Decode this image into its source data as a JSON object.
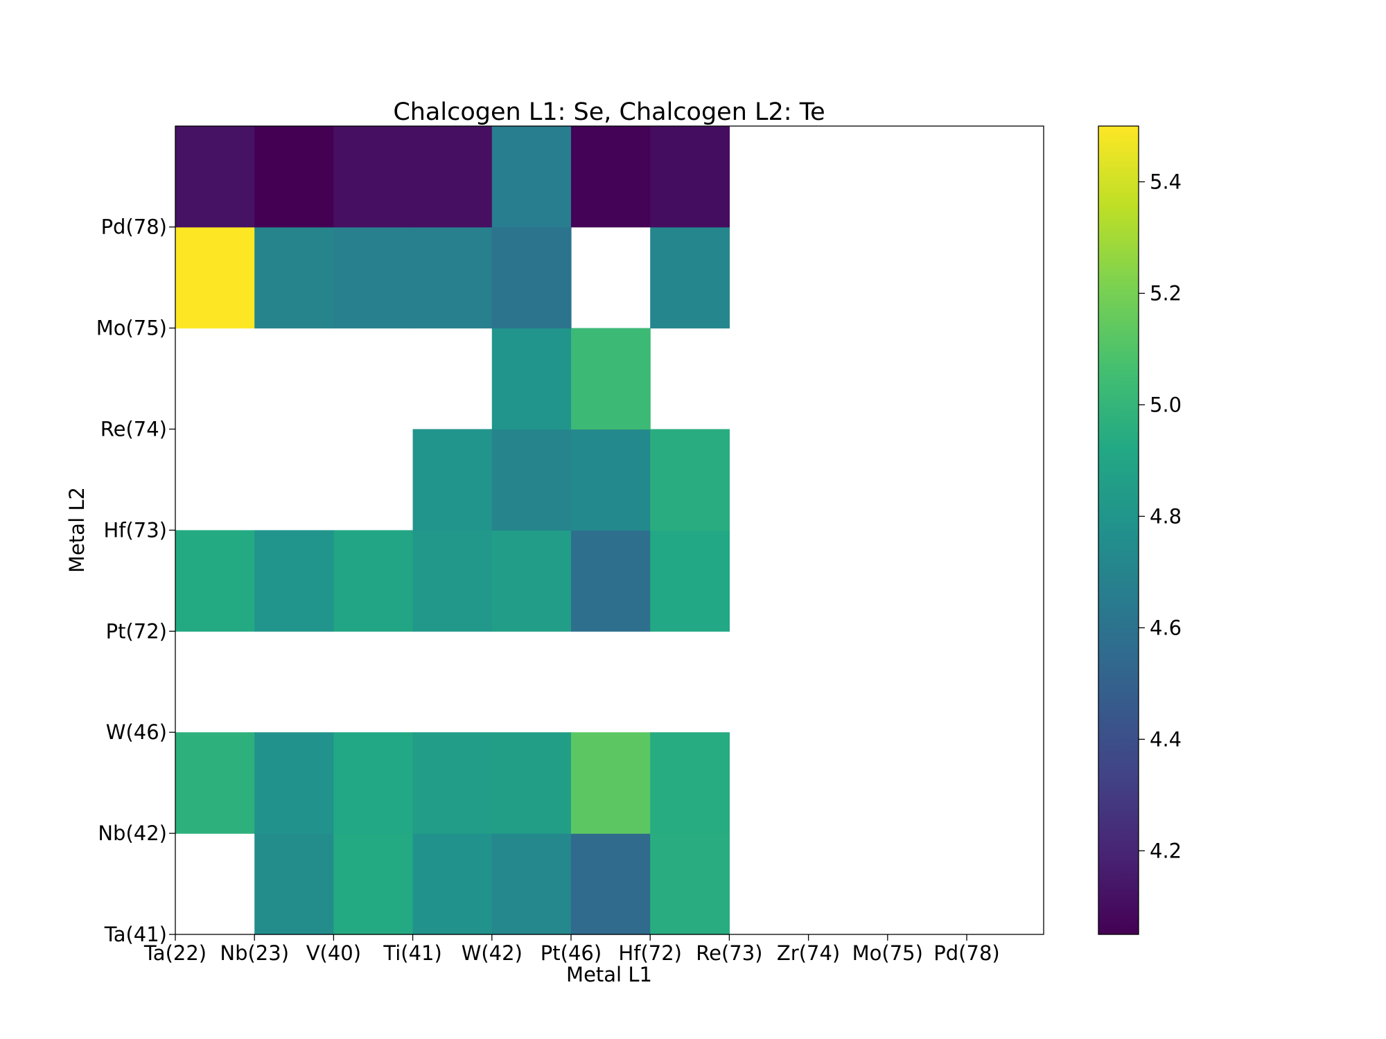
{
  "chart_data": {
    "type": "heatmap",
    "title": "Chalcogen L1: Se, Chalcogen L2: Te",
    "xlabel": "Metal L1",
    "ylabel": "Metal L2",
    "x_ticks": [
      "Ta(22)",
      "Nb(23)",
      "V(40)",
      "Ti(41)",
      "W(42)",
      "Pt(46)",
      "Hf(72)",
      "Re(73)",
      "Zr(74)",
      "Mo(75)",
      "Pd(78)"
    ],
    "y_ticks": [
      "Ta(41)",
      "Nb(42)",
      "W(46)",
      "Pt(72)",
      "Hf(73)",
      "Re(74)",
      "Mo(75)",
      "Pd(78)"
    ],
    "rows_bottom_to_top": [
      [
        null,
        4.75,
        4.93,
        4.78,
        4.72,
        4.55,
        4.95,
        null,
        null,
        null,
        null
      ],
      [
        4.97,
        4.78,
        4.92,
        4.85,
        4.86,
        5.13,
        4.94,
        null,
        null,
        null,
        null
      ],
      [
        null,
        null,
        null,
        null,
        null,
        null,
        null,
        null,
        null,
        null,
        null
      ],
      [
        4.93,
        4.8,
        4.9,
        4.82,
        4.85,
        4.58,
        4.92,
        null,
        null,
        null,
        null
      ],
      [
        null,
        null,
        null,
        4.8,
        4.7,
        4.73,
        4.95,
        null,
        null,
        null,
        null
      ],
      [
        null,
        null,
        null,
        null,
        4.8,
        5.03,
        null,
        null,
        null,
        null,
        null
      ],
      [
        5.5,
        4.7,
        4.67,
        4.67,
        4.6,
        null,
        4.71,
        null,
        null,
        null,
        null
      ],
      [
        4.12,
        4.05,
        4.11,
        4.11,
        4.66,
        4.06,
        4.1,
        null,
        null,
        null,
        null
      ]
    ],
    "colorbar": {
      "colormap": "viridis",
      "range": [
        4.05,
        5.5
      ],
      "ticks": [
        4.2,
        4.4,
        4.6,
        4.8,
        5.0,
        5.2,
        5.4
      ],
      "tick_labels": [
        "4.2",
        "4.4",
        "4.6",
        "4.8",
        "5.0",
        "5.2",
        "5.4"
      ]
    }
  }
}
